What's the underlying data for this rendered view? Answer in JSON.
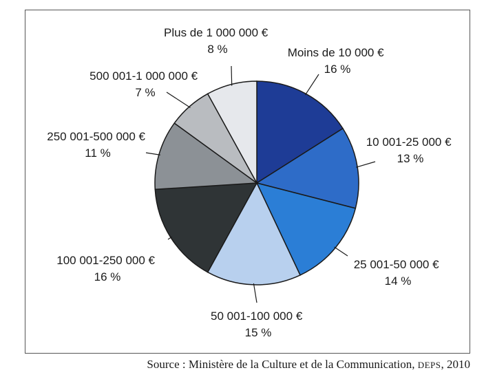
{
  "chart_data": {
    "type": "pie",
    "slices": [
      {
        "label": "Moins de 10 000 €",
        "pct_text": "16 %",
        "value": 16,
        "color": "#1e3c96"
      },
      {
        "label": "10 001-25 000 €",
        "pct_text": "13 %",
        "value": 13,
        "color": "#2e6cc8"
      },
      {
        "label": "25 001-50 000 €",
        "pct_text": "14 %",
        "value": 14,
        "color": "#2b7ed6"
      },
      {
        "label": "50 001-100 000 €",
        "pct_text": "15 %",
        "value": 15,
        "color": "#b8d0ee"
      },
      {
        "label": "100 001-250 000 €",
        "pct_text": "16 %",
        "value": 16,
        "color": "#2f3436"
      },
      {
        "label": "250 001-500 000 €",
        "pct_text": "11 %",
        "value": 11,
        "color": "#8c9196"
      },
      {
        "label": "500 001-1 000 000 €",
        "pct_text": "7 %",
        "value": 7,
        "color": "#b9bcc0"
      },
      {
        "label": "Plus de 1 000 000 €",
        "pct_text": "8 %",
        "value": 8,
        "color": "#e6e8ec"
      }
    ]
  },
  "source": {
    "prefix": "Source : Ministère de la Culture et de la Communication, ",
    "org": "DEPS",
    "suffix": ", 2010"
  }
}
